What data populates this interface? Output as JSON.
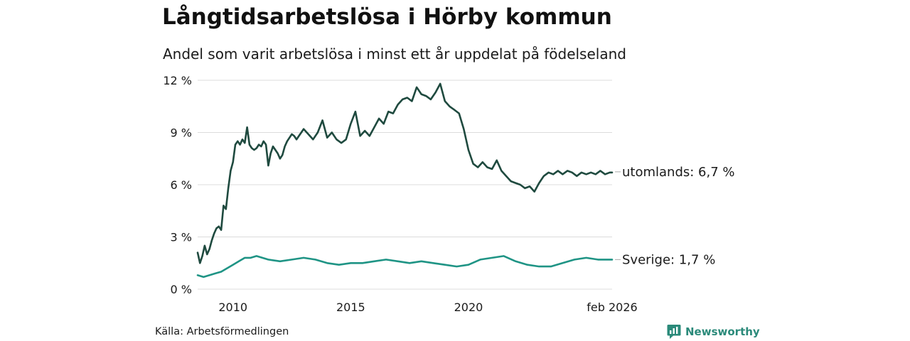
{
  "header": {
    "title": "Långtidsarbetslösa i Hörby kommun",
    "subtitle": "Andel som varit arbetslösa i minst ett år uppdelat på födelseland"
  },
  "footer": {
    "source": "Källa: Arbetsförmedlingen",
    "brand": "Newsworthy"
  },
  "colors": {
    "utomlands": "#1f4a3f",
    "sverige": "#1f9485",
    "grid": "#dcdcdc",
    "brand": "#2b8a7a"
  },
  "chart_data": {
    "type": "line",
    "title": "Långtidsarbetslösa i Hörby kommun",
    "subtitle": "Andel som varit arbetslösa i minst ett år uppdelat på födelseland",
    "xlabel": "",
    "ylabel": "",
    "x_range": [
      2008.5,
      2026.1
    ],
    "ylim": [
      0,
      12
    ],
    "grid": true,
    "y_ticks": [
      {
        "value": 0,
        "label": "0 %"
      },
      {
        "value": 3,
        "label": "3 %"
      },
      {
        "value": 6,
        "label": "6 %"
      },
      {
        "value": 9,
        "label": "9 %"
      },
      {
        "value": 12,
        "label": "12 %"
      }
    ],
    "x_ticks": [
      {
        "value": 2010,
        "label": "2010"
      },
      {
        "value": 2015,
        "label": "2015"
      },
      {
        "value": 2020,
        "label": "2020"
      },
      {
        "value": 2026.1,
        "label": "feb 2026"
      }
    ],
    "series": [
      {
        "name": "utomlands",
        "end_label": "utomlands: 6,7 %",
        "x": [
          2008.5,
          2008.6,
          2008.7,
          2008.8,
          2008.9,
          2009.0,
          2009.1,
          2009.2,
          2009.3,
          2009.4,
          2009.5,
          2009.6,
          2009.7,
          2009.8,
          2009.9,
          2010.0,
          2010.1,
          2010.2,
          2010.3,
          2010.4,
          2010.5,
          2010.6,
          2010.7,
          2010.8,
          2010.9,
          2011.0,
          2011.1,
          2011.2,
          2011.3,
          2011.4,
          2011.5,
          2011.6,
          2011.7,
          2011.8,
          2011.9,
          2012.0,
          2012.1,
          2012.2,
          2012.3,
          2012.4,
          2012.5,
          2012.6,
          2012.7,
          2012.8,
          2012.9,
          2013.0,
          2013.2,
          2013.4,
          2013.6,
          2013.8,
          2014.0,
          2014.2,
          2014.4,
          2014.6,
          2014.8,
          2015.0,
          2015.2,
          2015.4,
          2015.6,
          2015.8,
          2016.0,
          2016.2,
          2016.4,
          2016.6,
          2016.8,
          2017.0,
          2017.2,
          2017.4,
          2017.6,
          2017.8,
          2018.0,
          2018.2,
          2018.4,
          2018.6,
          2018.8,
          2019.0,
          2019.2,
          2019.4,
          2019.6,
          2019.8,
          2020.0,
          2020.2,
          2020.4,
          2020.6,
          2020.8,
          2021.0,
          2021.2,
          2021.4,
          2021.6,
          2021.8,
          2022.0,
          2022.2,
          2022.4,
          2022.6,
          2022.8,
          2023.0,
          2023.2,
          2023.4,
          2023.6,
          2023.8,
          2024.0,
          2024.2,
          2024.4,
          2024.6,
          2024.8,
          2025.0,
          2025.2,
          2025.4,
          2025.6,
          2025.8,
          2026.0,
          2026.1
        ],
        "values": [
          2.1,
          1.5,
          1.9,
          2.5,
          2.0,
          2.3,
          2.8,
          3.2,
          3.5,
          3.6,
          3.4,
          4.8,
          4.6,
          5.8,
          6.8,
          7.3,
          8.3,
          8.5,
          8.3,
          8.6,
          8.4,
          9.3,
          8.3,
          8.1,
          8.0,
          8.1,
          8.3,
          8.2,
          8.5,
          8.3,
          7.1,
          7.8,
          8.2,
          8.0,
          7.8,
          7.5,
          7.7,
          8.2,
          8.5,
          8.7,
          8.9,
          8.8,
          8.6,
          8.8,
          9.0,
          9.2,
          8.9,
          8.6,
          9.0,
          9.7,
          8.7,
          9.0,
          8.6,
          8.4,
          8.6,
          9.5,
          10.2,
          8.8,
          9.1,
          8.8,
          9.3,
          9.8,
          9.5,
          10.2,
          10.1,
          10.6,
          10.9,
          11.0,
          10.8,
          11.6,
          11.2,
          11.1,
          10.9,
          11.3,
          11.8,
          10.8,
          10.5,
          10.3,
          10.1,
          9.2,
          8.0,
          7.2,
          7.0,
          7.3,
          7.0,
          6.9,
          7.4,
          6.8,
          6.5,
          6.2,
          6.1,
          6.0,
          5.8,
          5.9,
          5.6,
          6.1,
          6.5,
          6.7,
          6.6,
          6.8,
          6.6,
          6.8,
          6.7,
          6.5,
          6.7,
          6.6,
          6.7,
          6.6,
          6.8,
          6.6,
          6.7,
          6.7
        ]
      },
      {
        "name": "Sverige",
        "end_label": "Sverige: 1,7 %",
        "x": [
          2008.5,
          2008.75,
          2009.0,
          2009.25,
          2009.5,
          2009.75,
          2010.0,
          2010.25,
          2010.5,
          2010.75,
          2011.0,
          2011.5,
          2012.0,
          2012.5,
          2013.0,
          2013.5,
          2014.0,
          2014.5,
          2015.0,
          2015.5,
          2016.0,
          2016.5,
          2017.0,
          2017.5,
          2018.0,
          2018.5,
          2019.0,
          2019.5,
          2020.0,
          2020.5,
          2021.0,
          2021.5,
          2022.0,
          2022.5,
          2023.0,
          2023.5,
          2024.0,
          2024.5,
          2025.0,
          2025.5,
          2026.0,
          2026.1
        ],
        "values": [
          0.8,
          0.7,
          0.8,
          0.9,
          1.0,
          1.2,
          1.4,
          1.6,
          1.8,
          1.8,
          1.9,
          1.7,
          1.6,
          1.7,
          1.8,
          1.7,
          1.5,
          1.4,
          1.5,
          1.5,
          1.6,
          1.7,
          1.6,
          1.5,
          1.6,
          1.5,
          1.4,
          1.3,
          1.4,
          1.7,
          1.8,
          1.9,
          1.6,
          1.4,
          1.3,
          1.3,
          1.5,
          1.7,
          1.8,
          1.7,
          1.7,
          1.7
        ]
      }
    ]
  }
}
